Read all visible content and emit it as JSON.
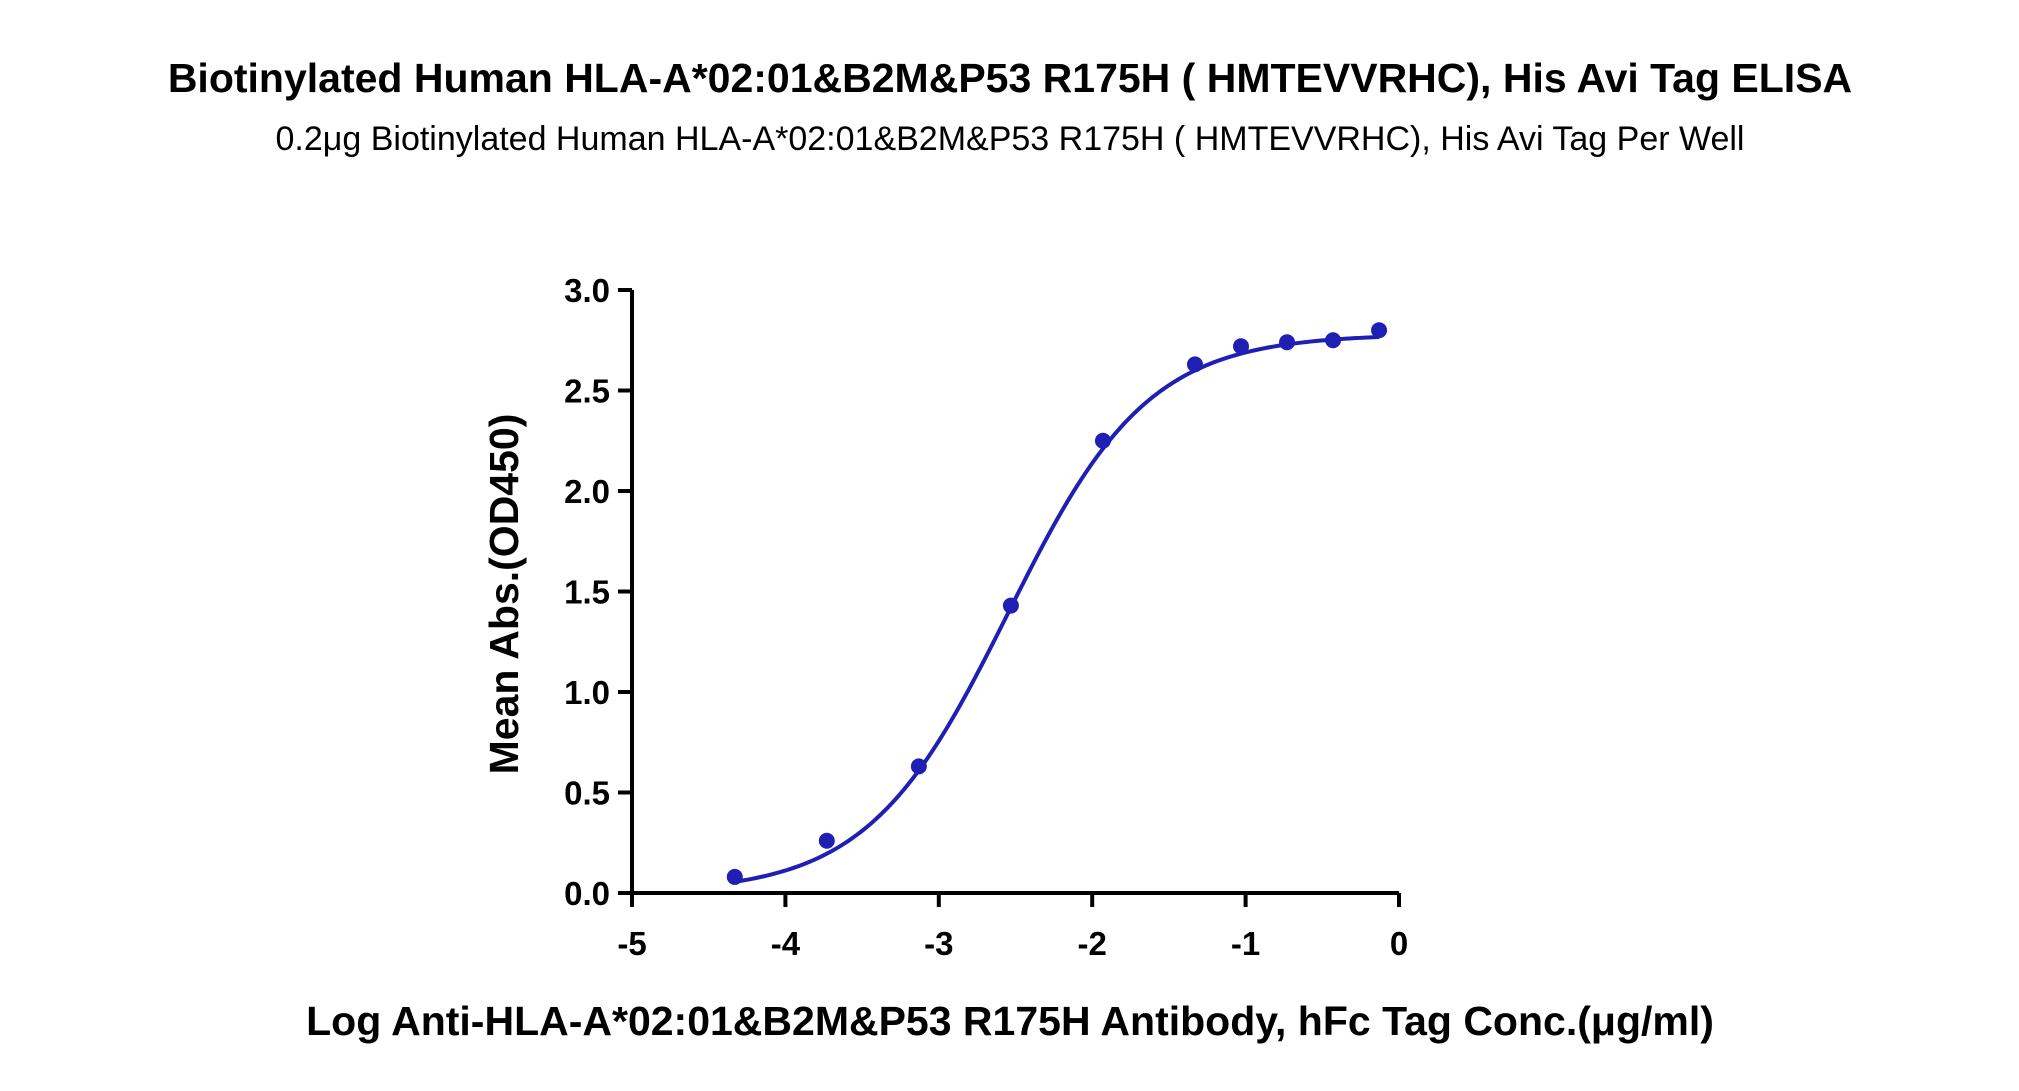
{
  "chart_data": {
    "type": "scatter",
    "title": "Biotinylated Human HLA-A*02:01&B2M&P53 R175H ( HMTEVVRHC), His Avi Tag ELISA",
    "subtitle": "0.2μg Biotinylated Human HLA-A*02:01&B2M&P53 R175H ( HMTEVVRHC), His Avi Tag Per Well",
    "xlabel": "Log Anti-HLA-A*02:01&B2M&P53 R175H Antibody, hFc Tag Conc.(μg/ml)",
    "ylabel": "Mean Abs.(OD450)",
    "xlim": [
      -5,
      0
    ],
    "ylim": [
      0,
      3
    ],
    "x_ticks": [
      "-5",
      "-4",
      "-3",
      "-2",
      "-1",
      "0"
    ],
    "y_ticks": [
      "0.0",
      "0.5",
      "1.0",
      "1.5",
      "2.0",
      "2.5",
      "3.0"
    ],
    "grid": false,
    "color": "#1f1fb4",
    "series": [
      {
        "points": [
          {
            "x": -4.33,
            "y": 0.08
          },
          {
            "x": -3.73,
            "y": 0.26
          },
          {
            "x": -3.13,
            "y": 0.63
          },
          {
            "x": -2.53,
            "y": 1.43
          },
          {
            "x": -1.93,
            "y": 2.25
          },
          {
            "x": -1.33,
            "y": 2.63
          },
          {
            "x": -1.03,
            "y": 2.72
          },
          {
            "x": -0.73,
            "y": 2.74
          },
          {
            "x": -0.43,
            "y": 2.75
          },
          {
            "x": -0.13,
            "y": 2.8
          }
        ],
        "fit": {
          "bottom": 0.0,
          "top": 2.78,
          "logEC50": -2.55,
          "hill": 0.95
        }
      }
    ]
  }
}
